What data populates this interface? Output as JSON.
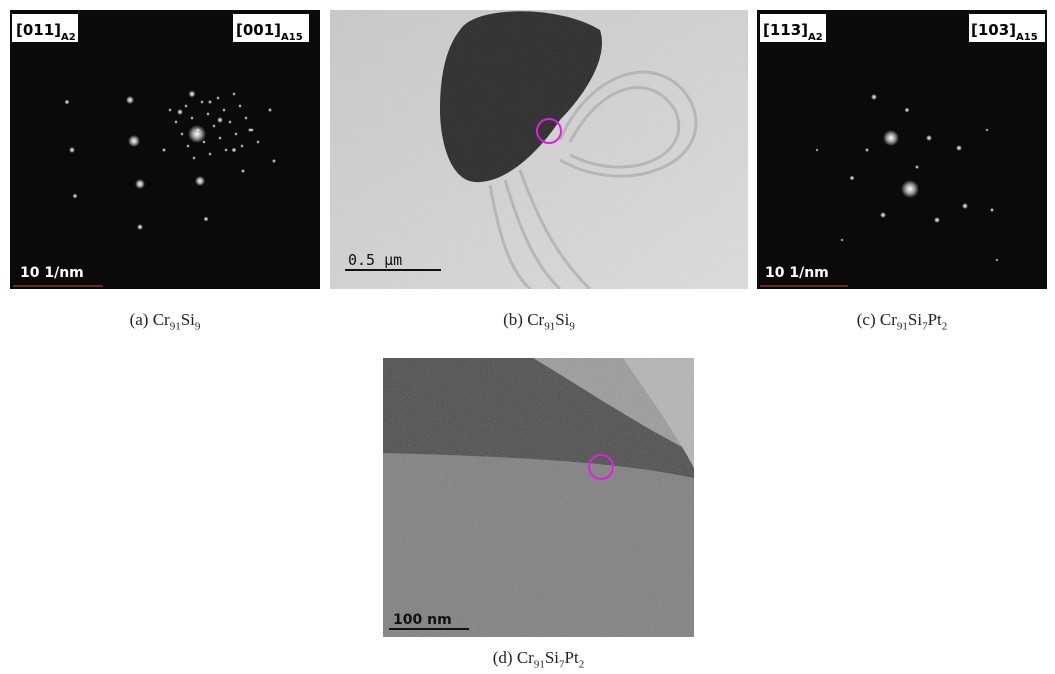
{
  "panels": [
    {
      "labels": [
        {
          "main": "[011]",
          "sub": "A2"
        },
        {
          "main": "[001]",
          "sub": "A15"
        }
      ],
      "scale_bar": "10 1/nm",
      "caption": {
        "label": "(a)",
        "formula": [
          [
            "Cr",
            "91"
          ],
          [
            "Si",
            "9"
          ]
        ]
      }
    },
    {
      "labels": [],
      "scale_bar": "0.5 μm",
      "caption": {
        "label": "(b)",
        "formula": [
          [
            "Cr",
            "91"
          ],
          [
            "Si",
            "9"
          ]
        ]
      }
    },
    {
      "labels": [
        {
          "main": "[113]",
          "sub": "A2"
        },
        {
          "main": "[103]",
          "sub": "A15"
        }
      ],
      "scale_bar": "10 1/nm",
      "caption": {
        "label": "(c)",
        "formula": [
          [
            "Cr",
            "91"
          ],
          [
            "Si",
            "7"
          ],
          [
            "Pt",
            "2"
          ]
        ]
      }
    },
    {
      "labels": [],
      "scale_bar": "100 nm",
      "caption": {
        "label": "(d)",
        "formula": [
          [
            "Cr",
            "91"
          ],
          [
            "Si",
            "7"
          ],
          [
            "Pt",
            "2"
          ]
        ]
      }
    }
  ]
}
